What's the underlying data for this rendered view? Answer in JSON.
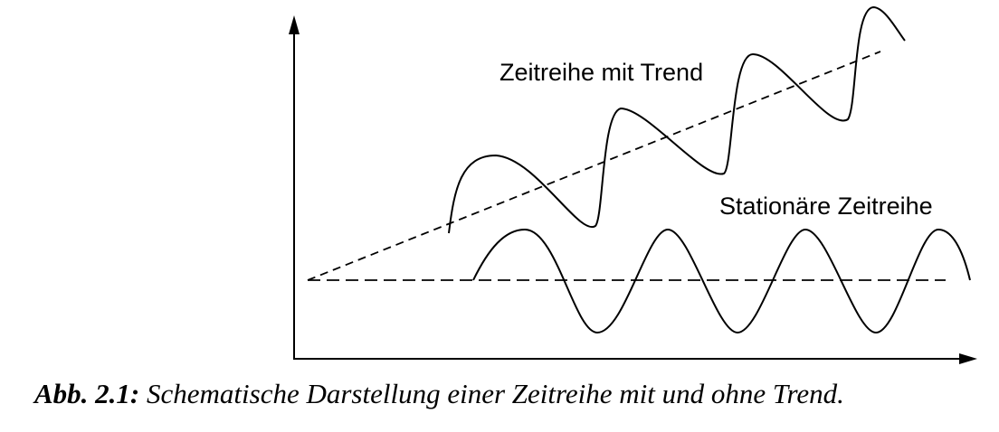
{
  "diagram": {
    "label_trend": "Zeitreihe mit Trend",
    "label_stationary": "Stationäre Zeitreihe"
  },
  "caption": {
    "label": "Abb. 2.1:",
    "text": " Schematische Darstellung einer Zeitreihe mit und ohne Trend."
  }
}
